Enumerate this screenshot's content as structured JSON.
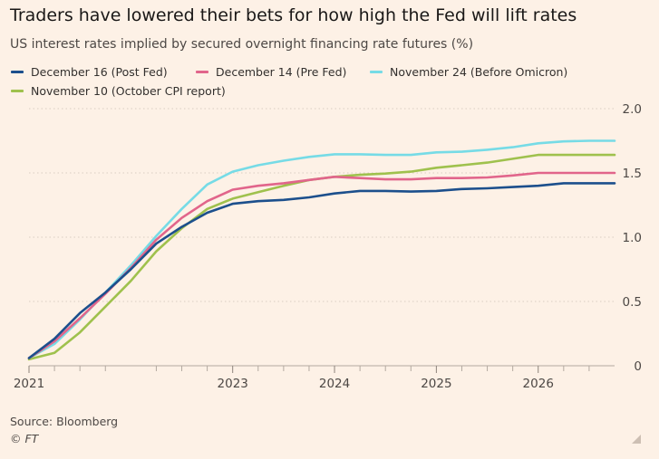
{
  "header": {
    "title": "Traders have lowered their bets for how high the Fed will lift rates",
    "subtitle": "US interest rates implied by secured overnight financing rate futures (%)"
  },
  "footer": {
    "source": "Source: Bloomberg",
    "copyright": "© FT"
  },
  "chart_data": {
    "type": "line",
    "title": "Traders have lowered their bets for how high the Fed will lift rates",
    "subtitle": "US interest rates implied by secured overnight financing rate futures (%)",
    "xlabel": "",
    "ylabel": "",
    "xlim": [
      2021.0,
      2026.75
    ],
    "ylim": [
      0,
      2.0
    ],
    "x_ticks": [
      2021,
      2023,
      2024,
      2025,
      2026
    ],
    "x_tick_labels": [
      "2021",
      "2023",
      "2024",
      "2025",
      "2026"
    ],
    "y_ticks": [
      0,
      0.5,
      1.0,
      1.5,
      2.0
    ],
    "y_tick_labels": [
      "0",
      "0.5",
      "1.0",
      "1.5",
      "2.0"
    ],
    "y_axis_side": "right",
    "grid": "horizontal dotted",
    "legend_position": "top",
    "x": [
      2021.0,
      2021.25,
      2021.5,
      2021.75,
      2022.0,
      2022.25,
      2022.5,
      2022.75,
      2023.0,
      2023.25,
      2023.5,
      2023.75,
      2024.0,
      2024.25,
      2024.5,
      2024.75,
      2025.0,
      2025.25,
      2025.5,
      2025.75,
      2026.0,
      2026.25,
      2026.5,
      2026.75
    ],
    "series": [
      {
        "name": "December 16 (Post Fed)",
        "color": "#1c4f8c",
        "values": [
          0.06,
          0.21,
          0.41,
          0.57,
          0.75,
          0.95,
          1.08,
          1.19,
          1.26,
          1.28,
          1.29,
          1.31,
          1.34,
          1.36,
          1.36,
          1.355,
          1.36,
          1.375,
          1.38,
          1.39,
          1.4,
          1.42,
          1.42,
          1.42
        ]
      },
      {
        "name": "December 14 (Pre Fed)",
        "color": "#e1658b",
        "values": [
          0.06,
          0.19,
          0.37,
          0.56,
          0.76,
          0.98,
          1.15,
          1.28,
          1.37,
          1.4,
          1.42,
          1.445,
          1.47,
          1.46,
          1.45,
          1.45,
          1.46,
          1.46,
          1.465,
          1.48,
          1.5,
          1.5,
          1.5,
          1.5
        ]
      },
      {
        "name": "November 24 (Before Omicron)",
        "color": "#76dbe6",
        "values": [
          0.06,
          0.17,
          0.36,
          0.57,
          0.78,
          1.01,
          1.22,
          1.41,
          1.51,
          1.56,
          1.595,
          1.625,
          1.645,
          1.645,
          1.64,
          1.64,
          1.66,
          1.665,
          1.68,
          1.7,
          1.73,
          1.745,
          1.75,
          1.75
        ]
      },
      {
        "name": "November 10 (October CPI report)",
        "color": "#9fc14d",
        "values": [
          0.05,
          0.1,
          0.26,
          0.46,
          0.66,
          0.89,
          1.07,
          1.22,
          1.3,
          1.35,
          1.4,
          1.445,
          1.47,
          1.485,
          1.495,
          1.51,
          1.54,
          1.56,
          1.58,
          1.61,
          1.64,
          1.64,
          1.64,
          1.64
        ]
      }
    ]
  }
}
